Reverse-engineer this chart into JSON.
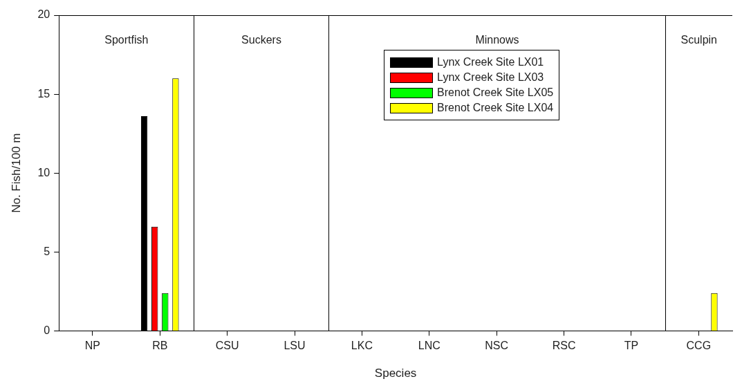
{
  "chart_data": {
    "type": "bar",
    "xlabel": "Species",
    "ylabel": "No. Fish/100 m",
    "categories": [
      "NP",
      "RB",
      "CSU",
      "LSU",
      "LKC",
      "LNC",
      "NSC",
      "RSC",
      "TP",
      "CCG"
    ],
    "series": [
      {
        "name": "Lynx Creek Site LX01",
        "color": "#000000",
        "values": [
          0,
          13.6,
          0,
          0,
          0,
          0,
          0,
          0,
          0,
          0
        ]
      },
      {
        "name": "Lynx Creek Site LX03",
        "color": "#ff0000",
        "values": [
          0,
          6.6,
          0,
          0,
          0,
          0,
          0,
          0,
          0,
          0
        ]
      },
      {
        "name": "Brenot Creek Site LX05",
        "color": "#00ff00",
        "values": [
          0,
          2.4,
          0,
          0,
          0,
          0,
          0,
          0,
          0,
          0
        ]
      },
      {
        "name": "Brenot Creek Site LX04",
        "color": "#ffff00",
        "values": [
          0,
          16,
          0,
          0,
          0,
          0,
          0,
          0,
          0,
          2.4
        ]
      }
    ],
    "annotations": [
      "Sportfish",
      "Suckers",
      "Minnows",
      "Sculpin"
    ],
    "ylim": [
      0,
      20
    ],
    "yticks": [
      0,
      5,
      10,
      15,
      20
    ],
    "grid": false,
    "legend": "top"
  }
}
